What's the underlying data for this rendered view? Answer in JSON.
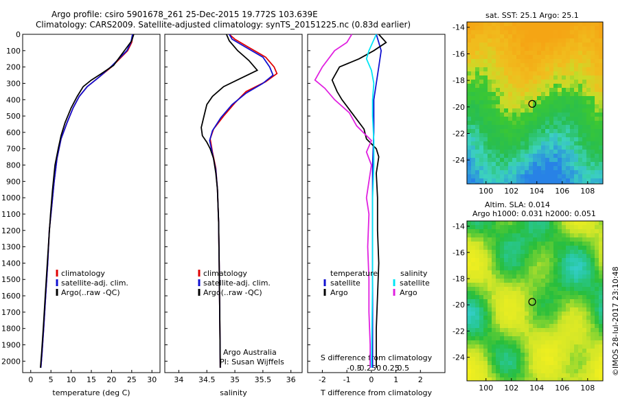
{
  "header": {
    "line1": "Argo profile: csiro 5901678_261 25-Dec-2015 19.772S 103.639E",
    "line2": "Climatology: CARS2009. Satellite-adjusted climatology: synTS_20151225.nc (0.83d earlier)"
  },
  "colors": {
    "climatology": "#e00000",
    "satellite": "#1010d0",
    "argo": "#000000",
    "sal_satellite": "#00e5f5",
    "sal_argo": "#e020e0"
  },
  "chart_data": [
    {
      "type": "line",
      "xlabel": "temperature (deg C)",
      "ylabel": "",
      "xlim": [
        -2,
        32
      ],
      "ylim": [
        2070,
        0
      ],
      "xticks": [
        0,
        5,
        10,
        15,
        20,
        25,
        30
      ],
      "yticks": [
        0,
        100,
        200,
        300,
        400,
        500,
        600,
        700,
        800,
        900,
        1000,
        1100,
        1200,
        1300,
        1400,
        1500,
        1600,
        1700,
        1800,
        1900,
        2000
      ],
      "legend": [
        "climatology",
        "satellite-adj. clim.",
        "Argo(..raw -QC)"
      ],
      "series": [
        {
          "name": "climatology",
          "points": [
            [
              25.3,
              0
            ],
            [
              25,
              50
            ],
            [
              24,
              100
            ],
            [
              22,
              150
            ],
            [
              20,
              200
            ],
            [
              17,
              260
            ],
            [
              14,
              320
            ],
            [
              12,
              380
            ],
            [
              10.5,
              450
            ],
            [
              9,
              540
            ],
            [
              7.5,
              640
            ],
            [
              6.5,
              760
            ],
            [
              5.8,
              900
            ],
            [
              5.2,
              1050
            ],
            [
              4.6,
              1200
            ],
            [
              4.2,
              1400
            ],
            [
              3.7,
              1600
            ],
            [
              3.2,
              1800
            ],
            [
              2.8,
              1950
            ],
            [
              2.5,
              2040
            ]
          ]
        },
        {
          "name": "satellite-adj. clim.",
          "points": [
            [
              25.2,
              0
            ],
            [
              24.8,
              50
            ],
            [
              23.8,
              100
            ],
            [
              21.8,
              150
            ],
            [
              19.8,
              200
            ],
            [
              17,
              260
            ],
            [
              14,
              320
            ],
            [
              12,
              380
            ],
            [
              10.5,
              450
            ],
            [
              9,
              540
            ],
            [
              7.5,
              640
            ],
            [
              6.5,
              760
            ],
            [
              5.8,
              900
            ],
            [
              5.2,
              1050
            ],
            [
              4.6,
              1200
            ],
            [
              4.2,
              1400
            ],
            [
              3.7,
              1600
            ],
            [
              3.2,
              1800
            ],
            [
              2.8,
              1950
            ],
            [
              2.5,
              2040
            ]
          ]
        },
        {
          "name": "Argo(..raw -QC)",
          "points": [
            [
              25.5,
              0
            ],
            [
              25,
              40
            ],
            [
              23.5,
              90
            ],
            [
              22,
              140
            ],
            [
              20.5,
              190
            ],
            [
              17.5,
              240
            ],
            [
              15,
              280
            ],
            [
              13,
              320
            ],
            [
              11.5,
              380
            ],
            [
              10,
              450
            ],
            [
              8.5,
              540
            ],
            [
              7.5,
              620
            ],
            [
              6.8,
              700
            ],
            [
              6,
              800
            ],
            [
              5.4,
              950
            ],
            [
              4.9,
              1100
            ],
            [
              4.5,
              1250
            ],
            [
              4.1,
              1400
            ],
            [
              3.6,
              1600
            ],
            [
              3.1,
              1800
            ],
            [
              2.7,
              1950
            ],
            [
              2.4,
              2040
            ]
          ]
        }
      ]
    },
    {
      "type": "line",
      "xlabel": "salinity",
      "xlim": [
        33.75,
        36.2
      ],
      "ylim": [
        2070,
        0
      ],
      "xticks": [
        34,
        34.5,
        35,
        35.5,
        36
      ],
      "legend": [
        "climatology",
        "satellite-adj. clim.",
        "Argo(..raw -QC)"
      ],
      "annotation": [
        "Argo Australia",
        "PI: Susan Wijffels"
      ],
      "series": [
        {
          "name": "climatology",
          "points": [
            [
              34.9,
              0
            ],
            [
              35,
              30
            ],
            [
              35.25,
              80
            ],
            [
              35.55,
              140
            ],
            [
              35.7,
              200
            ],
            [
              35.75,
              240
            ],
            [
              35.55,
              290
            ],
            [
              35.2,
              350
            ],
            [
              35,
              420
            ],
            [
              34.8,
              500
            ],
            [
              34.62,
              580
            ],
            [
              34.56,
              640
            ],
            [
              34.6,
              720
            ],
            [
              34.66,
              820
            ],
            [
              34.69,
              950
            ],
            [
              34.71,
              1150
            ],
            [
              34.72,
              1400
            ],
            [
              34.73,
              1700
            ],
            [
              34.74,
              2040
            ]
          ]
        },
        {
          "name": "satellite-adj. clim.",
          "points": [
            [
              34.9,
              0
            ],
            [
              34.95,
              30
            ],
            [
              35.2,
              80
            ],
            [
              35.5,
              140
            ],
            [
              35.62,
              200
            ],
            [
              35.68,
              250
            ],
            [
              35.5,
              300
            ],
            [
              35.2,
              360
            ],
            [
              34.95,
              430
            ],
            [
              34.75,
              510
            ],
            [
              34.6,
              590
            ],
            [
              34.55,
              650
            ],
            [
              34.6,
              730
            ],
            [
              34.66,
              830
            ],
            [
              34.69,
              950
            ],
            [
              34.71,
              1150
            ],
            [
              34.72,
              1400
            ],
            [
              34.73,
              1700
            ],
            [
              34.74,
              2040
            ]
          ]
        },
        {
          "name": "Argo(..raw -QC)",
          "points": [
            [
              34.85,
              0
            ],
            [
              34.9,
              40
            ],
            [
              35.05,
              100
            ],
            [
              35.25,
              160
            ],
            [
              35.4,
              220
            ],
            [
              35.1,
              270
            ],
            [
              34.8,
              320
            ],
            [
              34.6,
              380
            ],
            [
              34.5,
              430
            ],
            [
              34.45,
              500
            ],
            [
              34.4,
              570
            ],
            [
              34.42,
              620
            ],
            [
              34.5,
              660
            ],
            [
              34.56,
              700
            ],
            [
              34.62,
              760
            ],
            [
              34.66,
              850
            ],
            [
              34.69,
              950
            ],
            [
              34.71,
              1150
            ],
            [
              34.72,
              1400
            ],
            [
              34.73,
              1700
            ],
            [
              34.74,
              2040
            ]
          ]
        }
      ]
    },
    {
      "type": "line",
      "xlabel": "T difference from climatology",
      "xlabel2": "S difference from climatology",
      "xlim": [
        -2.6,
        3.0
      ],
      "ylim": [
        2070,
        0
      ],
      "xticks": [
        -2,
        -1,
        0,
        1,
        2
      ],
      "xticks_top": [
        "-0.5",
        "-0.25",
        "0",
        "0.25",
        "0.5"
      ],
      "legend_left_title": "temperature",
      "legend_right_title": "salinity",
      "legend_left": [
        "satellite",
        "Argo"
      ],
      "legend_right": [
        "satellite",
        "Argo"
      ],
      "series": [
        {
          "name": "temperature satellite",
          "points": [
            [
              0.2,
              0
            ],
            [
              0.3,
              50
            ],
            [
              0.4,
              100
            ],
            [
              0.3,
              200
            ],
            [
              0.2,
              300
            ],
            [
              0.1,
              400
            ],
            [
              0.1,
              600
            ],
            [
              0.05,
              800
            ],
            [
              0.05,
              2040
            ]
          ]
        },
        {
          "name": "temperature Argo",
          "points": [
            [
              0.3,
              0
            ],
            [
              0.6,
              50
            ],
            [
              0.1,
              100
            ],
            [
              -0.5,
              150
            ],
            [
              -1.3,
              200
            ],
            [
              -1.6,
              280
            ],
            [
              -1.4,
              350
            ],
            [
              -1.2,
              400
            ],
            [
              -0.8,
              480
            ],
            [
              -0.3,
              580
            ],
            [
              -0.2,
              640
            ],
            [
              0.2,
              700
            ],
            [
              0.3,
              750
            ],
            [
              0.2,
              850
            ],
            [
              0.25,
              1000
            ],
            [
              0.25,
              1200
            ],
            [
              0.3,
              1400
            ],
            [
              0.25,
              1600
            ],
            [
              0.2,
              1800
            ],
            [
              0.2,
              2040
            ]
          ]
        },
        {
          "name": "salinity satellite",
          "points": [
            [
              0.2,
              0
            ],
            [
              -0.1,
              100
            ],
            [
              -0.2,
              150
            ],
            [
              0,
              220
            ],
            [
              0.1,
              300
            ],
            [
              0.05,
              400
            ],
            [
              0.05,
              500
            ],
            [
              0.1,
              650
            ],
            [
              0.1,
              800
            ],
            [
              0.05,
              1000
            ],
            [
              0.05,
              1500
            ],
            [
              0,
              2040
            ]
          ]
        },
        {
          "name": "salinity Argo",
          "points": [
            [
              -0.8,
              0
            ],
            [
              -1,
              50
            ],
            [
              -1.5,
              100
            ],
            [
              -2,
              200
            ],
            [
              -2.3,
              280
            ],
            [
              -1.9,
              330
            ],
            [
              -1.5,
              400
            ],
            [
              -0.9,
              480
            ],
            [
              -0.6,
              560
            ],
            [
              0,
              650
            ],
            [
              -0.2,
              720
            ],
            [
              0,
              800
            ],
            [
              -0.1,
              900
            ],
            [
              -0.2,
              1000
            ],
            [
              -0.1,
              1100
            ],
            [
              -0.15,
              1300
            ],
            [
              -0.1,
              1500
            ],
            [
              -0.1,
              1700
            ],
            [
              -0.05,
              1900
            ],
            [
              -0.05,
              2040
            ]
          ]
        }
      ]
    },
    {
      "type": "heatmap",
      "title": "sat. SST: 25.1  Argo: 25.1",
      "xticks": [
        100,
        102,
        104,
        106,
        108
      ],
      "yticks": [
        -14,
        -16,
        -18,
        -20,
        -22,
        -24
      ],
      "xlim": [
        98.5,
        109.2
      ],
      "ylim": [
        -25.8,
        -13.6
      ],
      "marker": [
        103.639,
        -19.772
      ]
    },
    {
      "type": "heatmap",
      "title": "Altim. SLA: 0.014",
      "subtitle": "Argo h1000: 0.031  h2000: 0.051",
      "xticks": [
        100,
        102,
        104,
        106,
        108
      ],
      "yticks": [
        -14,
        -16,
        -18,
        -20,
        -22,
        -24
      ],
      "xlim": [
        98.5,
        109.2
      ],
      "ylim": [
        -25.8,
        -13.6
      ],
      "marker": [
        103.639,
        -19.772
      ]
    }
  ],
  "credit": "©IMOS 28-Jul-2017 23:10:48"
}
